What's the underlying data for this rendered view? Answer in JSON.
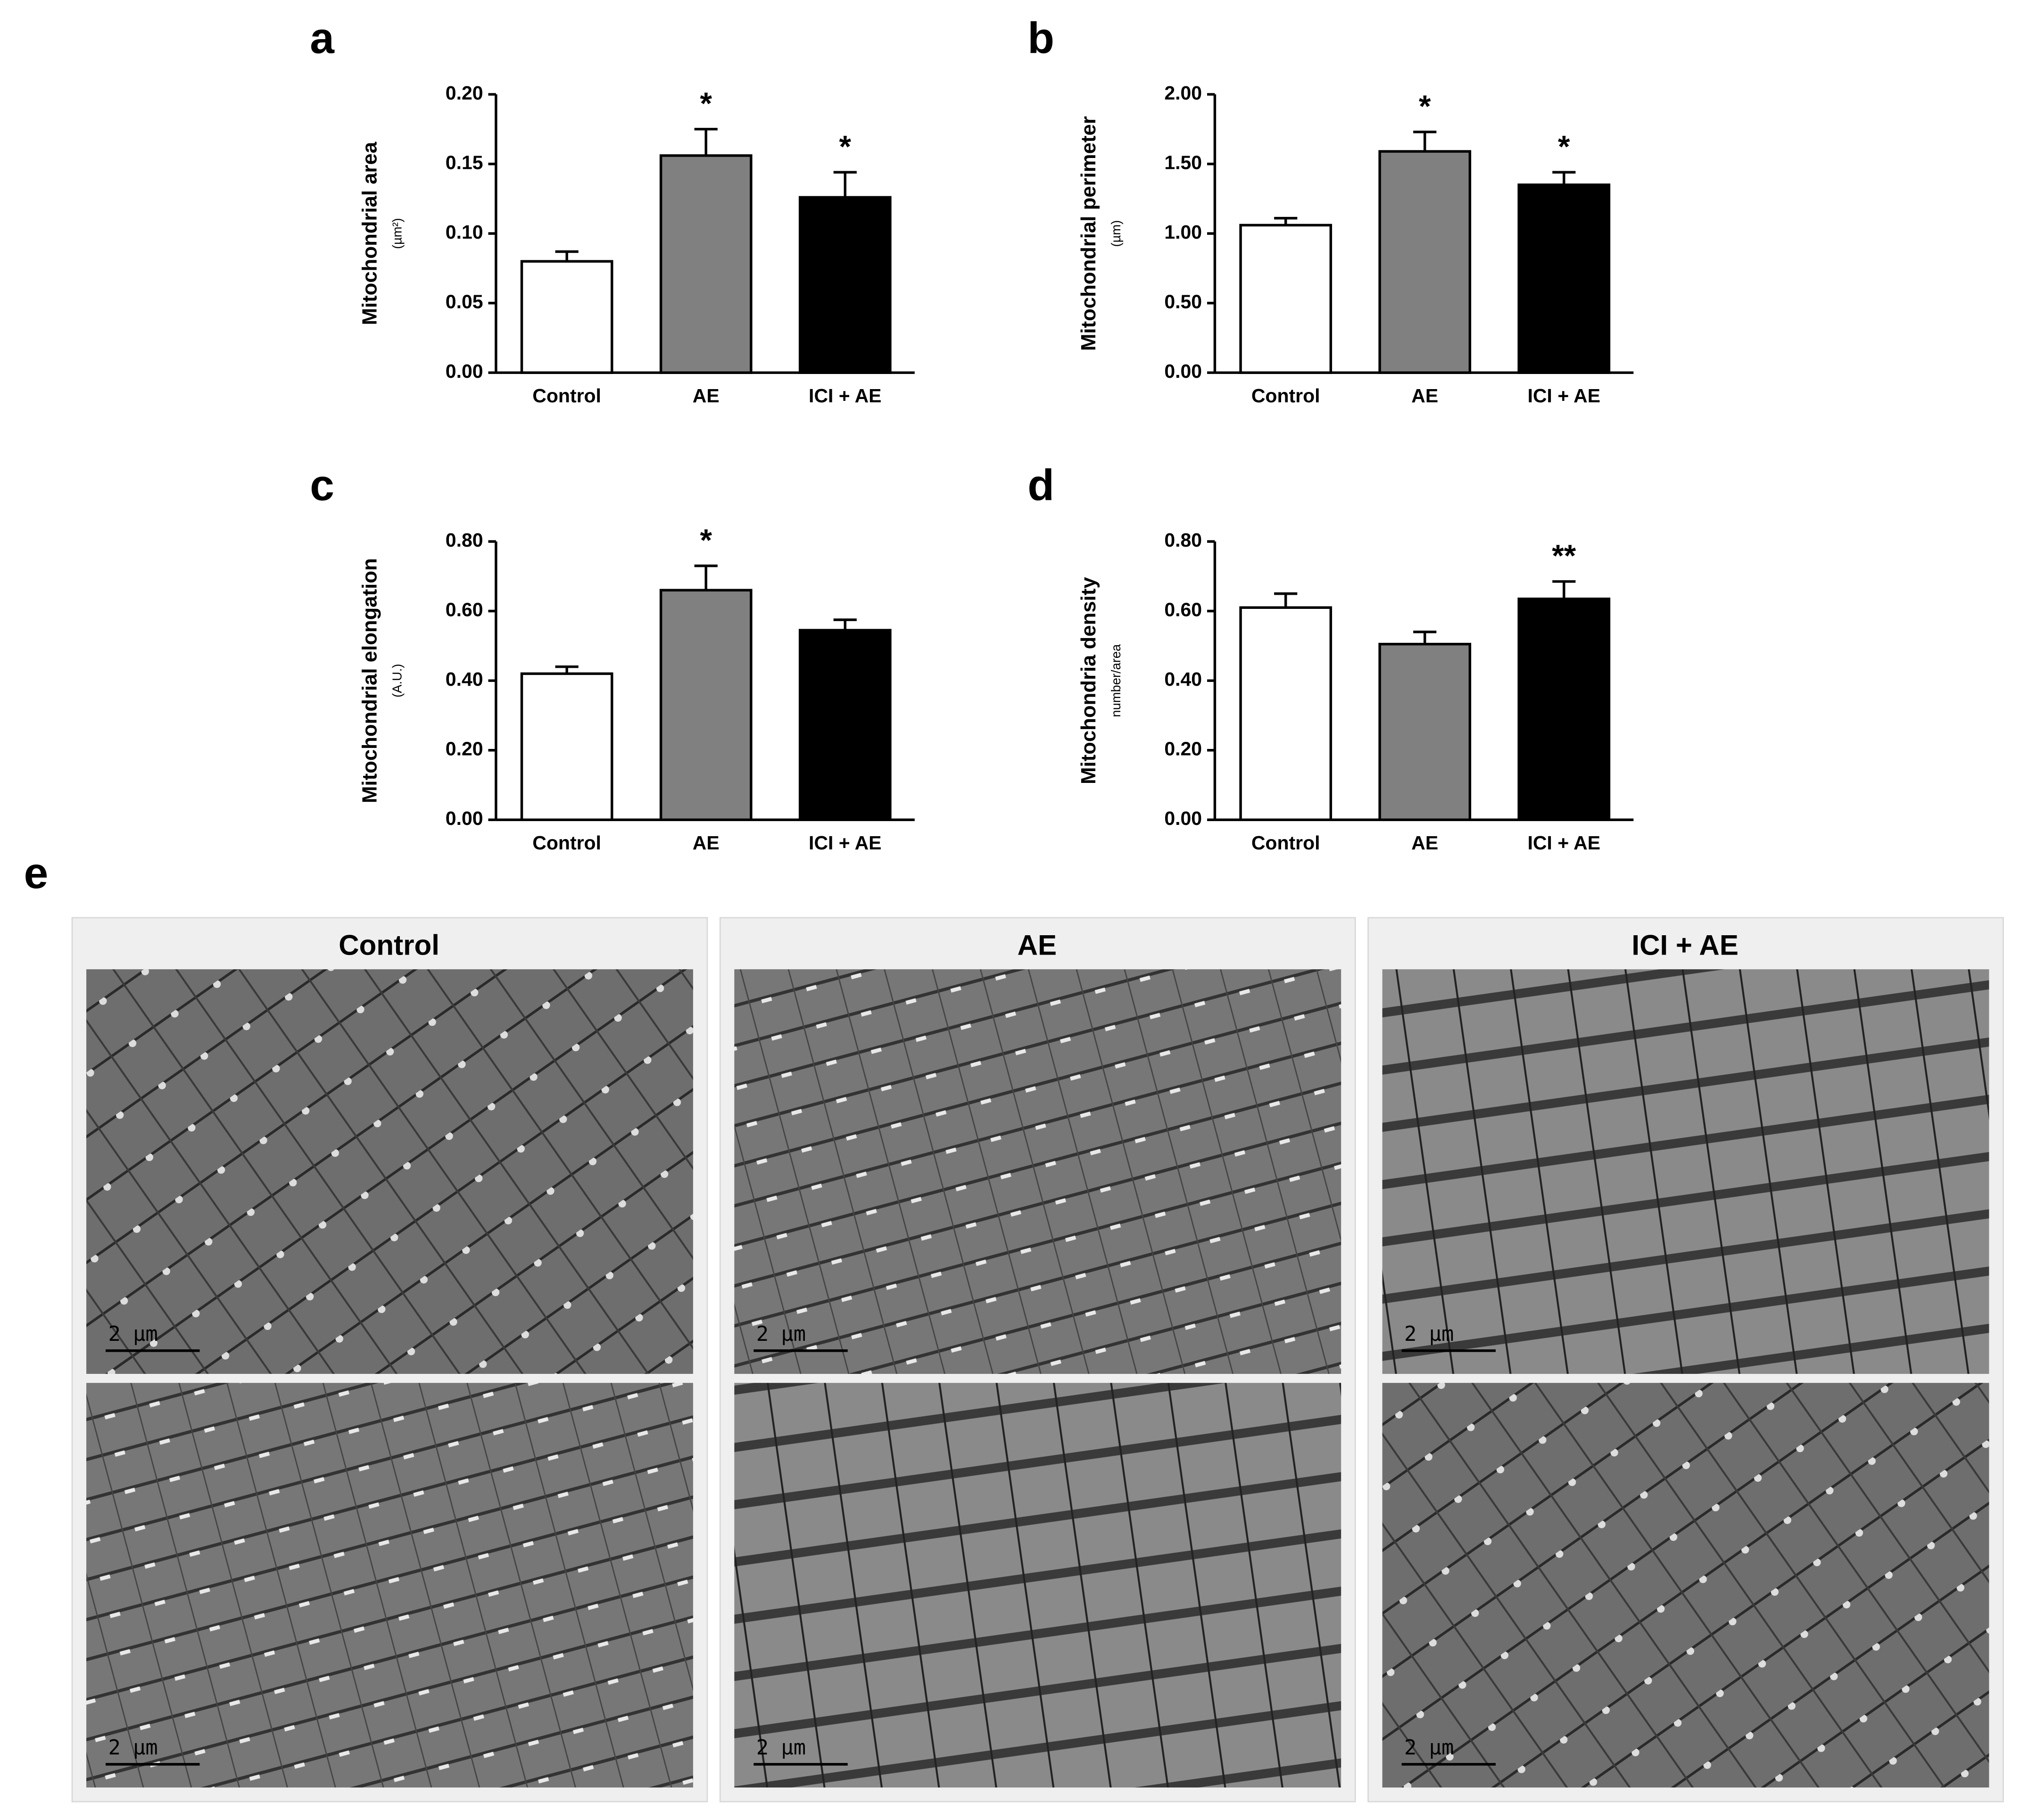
{
  "chart_data": [
    {
      "type": "bar",
      "panel": "a",
      "ylabel": "Mitochondrial area",
      "yunit": "(µm²)",
      "categories": [
        "Control",
        "AE",
        "ICI + AE"
      ],
      "values": [
        0.08,
        0.156,
        0.126
      ],
      "errors": [
        0.007,
        0.019,
        0.018
      ],
      "annotations": [
        null,
        "*",
        "*"
      ],
      "colors": [
        "#ffffff",
        "#808080",
        "#000000"
      ],
      "ylim": [
        0,
        0.2
      ],
      "yticks": [
        {
          "value": 0,
          "label": "0.00"
        },
        {
          "value": 0.05,
          "label": "0.05"
        },
        {
          "value": 0.1,
          "label": "0.10"
        },
        {
          "value": 0.15,
          "label": "0.15"
        },
        {
          "value": 0.2,
          "label": "0.20"
        }
      ]
    },
    {
      "type": "bar",
      "panel": "b",
      "ylabel": "Mitochondrial perimeter",
      "yunit": "(µm)",
      "categories": [
        "Control",
        "AE",
        "ICI + AE"
      ],
      "values": [
        1.06,
        1.59,
        1.35
      ],
      "errors": [
        0.05,
        0.14,
        0.09
      ],
      "annotations": [
        null,
        "*",
        "*"
      ],
      "colors": [
        "#ffffff",
        "#808080",
        "#000000"
      ],
      "ylim": [
        0,
        2
      ],
      "yticks": [
        {
          "value": 0,
          "label": "0.00"
        },
        {
          "value": 0.5,
          "label": "0.50"
        },
        {
          "value": 1,
          "label": "1.00"
        },
        {
          "value": 1.5,
          "label": "1.50"
        },
        {
          "value": 2,
          "label": "2.00"
        }
      ]
    },
    {
      "type": "bar",
      "panel": "c",
      "ylabel": "Mitochondrial elongation",
      "yunit": "(A.U.)",
      "categories": [
        "Control",
        "AE",
        "ICI + AE"
      ],
      "values": [
        0.42,
        0.66,
        0.545
      ],
      "errors": [
        0.02,
        0.07,
        0.03
      ],
      "annotations": [
        null,
        "*",
        null
      ],
      "colors": [
        "#ffffff",
        "#808080",
        "#000000"
      ],
      "ylim": [
        0,
        0.8
      ],
      "yticks": [
        {
          "value": 0,
          "label": "0.00"
        },
        {
          "value": 0.2,
          "label": "0.20"
        },
        {
          "value": 0.4,
          "label": "0.40"
        },
        {
          "value": 0.6,
          "label": "0.60"
        },
        {
          "value": 0.8,
          "label": "0.80"
        }
      ]
    },
    {
      "type": "bar",
      "panel": "d",
      "ylabel": "Mitochondria density",
      "yunit": "number/area",
      "categories": [
        "Control",
        "AE",
        "ICI + AE"
      ],
      "values": [
        0.61,
        0.505,
        0.635
      ],
      "errors": [
        0.04,
        0.035,
        0.05
      ],
      "annotations": [
        null,
        null,
        "**"
      ],
      "colors": [
        "#ffffff",
        "#808080",
        "#000000"
      ],
      "ylim": [
        0,
        0.8
      ],
      "yticks": [
        {
          "value": 0,
          "label": "0.00"
        },
        {
          "value": 0.2,
          "label": "0.20"
        },
        {
          "value": 0.4,
          "label": "0.40"
        },
        {
          "value": 0.6,
          "label": "0.60"
        },
        {
          "value": 0.8,
          "label": "0.80"
        }
      ]
    }
  ],
  "micrographs": {
    "panel": "e",
    "columns": [
      "Control",
      "AE",
      "ICI + AE"
    ],
    "scale_bar": "2  µm"
  }
}
